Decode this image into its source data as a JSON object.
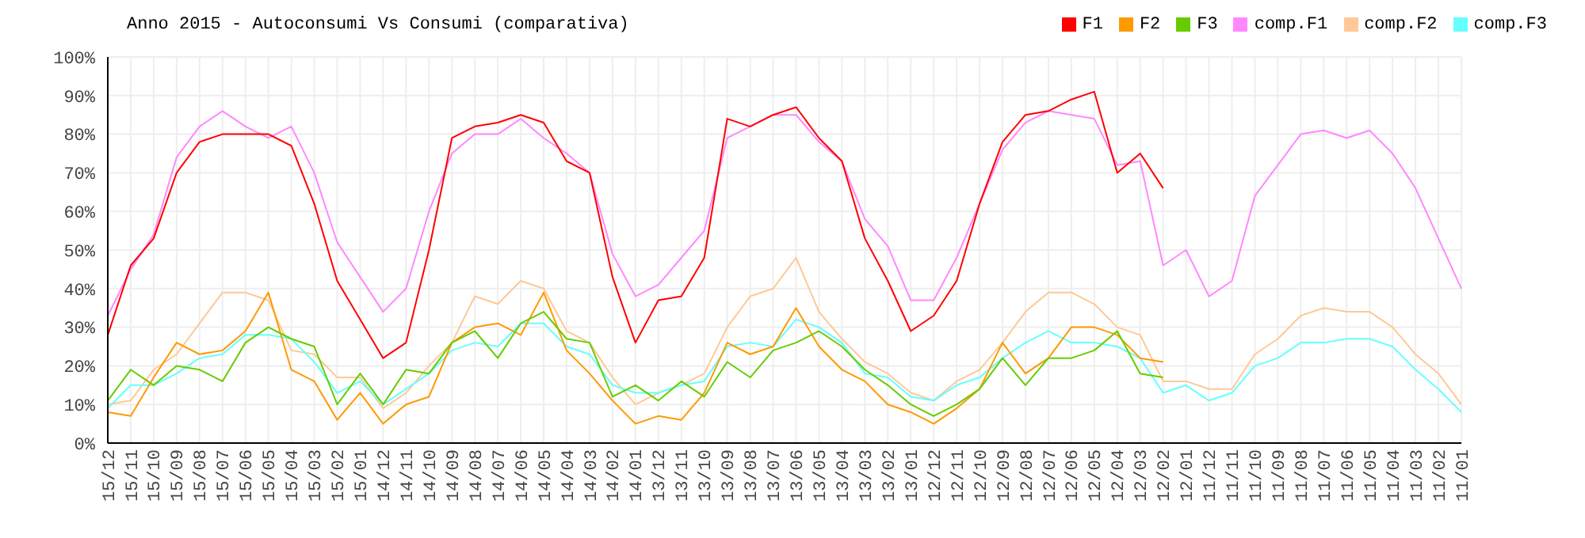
{
  "chart_data": {
    "type": "line",
    "title": "Anno 2015 - Autoconsumi Vs Consumi (comparativa)",
    "categories": [
      "15/12",
      "15/11",
      "15/10",
      "15/09",
      "15/08",
      "15/07",
      "15/06",
      "15/05",
      "15/04",
      "15/03",
      "15/02",
      "15/01",
      "14/12",
      "14/11",
      "14/10",
      "14/09",
      "14/08",
      "14/07",
      "14/06",
      "14/05",
      "14/04",
      "14/03",
      "14/02",
      "14/01",
      "13/12",
      "13/11",
      "13/10",
      "13/09",
      "13/08",
      "13/07",
      "13/06",
      "13/05",
      "13/04",
      "13/03",
      "13/02",
      "13/01",
      "12/12",
      "12/11",
      "12/10",
      "12/09",
      "12/08",
      "12/07",
      "12/06",
      "12/05",
      "12/04",
      "12/03",
      "12/02",
      "12/01",
      "11/12",
      "11/11",
      "11/10",
      "11/09",
      "11/08",
      "11/07",
      "11/06",
      "11/05",
      "11/04",
      "11/03",
      "11/02",
      "11/01"
    ],
    "series": [
      {
        "name": "comp.F1",
        "color": "#ff88ff",
        "values": [
          33,
          45,
          54,
          74,
          82,
          86,
          82,
          79,
          82,
          70,
          52,
          43,
          34,
          40,
          60,
          75,
          80,
          80,
          84,
          79,
          75,
          70,
          49,
          38,
          41,
          48,
          55,
          79,
          82,
          85,
          85,
          78,
          73,
          58,
          51,
          37,
          37,
          48,
          62,
          76,
          83,
          86,
          85,
          84,
          72,
          73,
          46,
          50,
          38,
          42,
          64,
          72,
          80,
          81,
          79,
          81,
          75,
          66,
          53,
          40
        ]
      },
      {
        "name": "comp.F2",
        "color": "#ffc896",
        "values": [
          10,
          11,
          19,
          23,
          31,
          39,
          39,
          37,
          24,
          23,
          17,
          17,
          9,
          13,
          20,
          26,
          38,
          36,
          42,
          40,
          29,
          26,
          17,
          10,
          13,
          15,
          18,
          30,
          38,
          40,
          48,
          34,
          27,
          21,
          18,
          13,
          11,
          16,
          19,
          26,
          34,
          39,
          39,
          36,
          30,
          28,
          16,
          16,
          14,
          14,
          23,
          27,
          33,
          35,
          34,
          34,
          30,
          23,
          18,
          10
        ]
      },
      {
        "name": "comp.F3",
        "color": "#66ffff",
        "values": [
          9,
          15,
          15,
          18,
          22,
          23,
          28,
          28,
          27,
          21,
          13,
          16,
          10,
          14,
          18,
          24,
          26,
          25,
          31,
          31,
          25,
          23,
          15,
          13,
          13,
          15,
          16,
          25,
          26,
          25,
          32,
          30,
          26,
          18,
          17,
          12,
          11,
          15,
          17,
          22,
          26,
          29,
          26,
          26,
          25,
          22,
          13,
          15,
          11,
          13,
          20,
          22,
          26,
          26,
          27,
          27,
          25,
          19,
          14,
          8
        ]
      },
      {
        "name": "F1",
        "color": "#ff0000",
        "values": [
          28,
          46,
          53,
          70,
          78,
          80,
          80,
          80,
          77,
          62,
          42,
          32,
          22,
          26,
          50,
          79,
          82,
          83,
          85,
          83,
          73,
          70,
          43,
          26,
          37,
          38,
          48,
          84,
          82,
          85,
          87,
          79,
          73,
          53,
          42,
          29,
          33,
          42,
          62,
          78,
          85,
          86,
          89,
          91,
          70,
          75,
          66,
          null,
          null,
          null,
          null,
          null,
          null,
          null,
          null,
          null,
          null,
          null,
          null,
          null
        ]
      },
      {
        "name": "F2",
        "color": "#ff9900",
        "values": [
          8,
          7,
          17,
          26,
          23,
          24,
          29,
          39,
          19,
          16,
          6,
          13,
          5,
          10,
          12,
          26,
          30,
          31,
          28,
          39,
          24,
          18,
          11,
          5,
          7,
          6,
          13,
          26,
          23,
          25,
          35,
          25,
          19,
          16,
          10,
          8,
          5,
          9,
          14,
          26,
          18,
          22,
          30,
          30,
          28,
          22,
          21,
          null,
          null,
          null,
          null,
          null,
          null,
          null,
          null,
          null,
          null,
          null,
          null,
          null
        ]
      },
      {
        "name": "F3",
        "color": "#66cc00",
        "values": [
          11,
          19,
          15,
          20,
          19,
          16,
          26,
          30,
          27,
          25,
          10,
          18,
          10,
          19,
          18,
          26,
          29,
          22,
          31,
          34,
          27,
          26,
          12,
          15,
          11,
          16,
          12,
          21,
          17,
          24,
          26,
          29,
          25,
          19,
          15,
          10,
          7,
          10,
          14,
          22,
          15,
          22,
          22,
          24,
          29,
          18,
          17,
          null,
          null,
          null,
          null,
          null,
          null,
          null,
          null,
          null,
          null,
          null,
          null,
          null
        ]
      }
    ],
    "ylim": [
      0,
      100
    ],
    "yticks": [
      {
        "value": 0,
        "label": "0%"
      },
      {
        "value": 10,
        "label": "10%"
      },
      {
        "value": 20,
        "label": "20%"
      },
      {
        "value": 30,
        "label": "30%"
      },
      {
        "value": 40,
        "label": "40%"
      },
      {
        "value": 50,
        "label": "50%"
      },
      {
        "value": 60,
        "label": "60%"
      },
      {
        "value": 70,
        "label": "70%"
      },
      {
        "value": 80,
        "label": "80%"
      },
      {
        "value": 90,
        "label": "90%"
      },
      {
        "value": 100,
        "label": "100%"
      }
    ],
    "grid": true,
    "legend": "top right",
    "marker": "none",
    "line_style": "solid"
  }
}
